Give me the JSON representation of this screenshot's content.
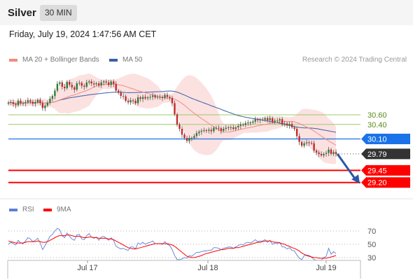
{
  "header": {
    "title": "Silver",
    "timeframe": "30 MIN"
  },
  "datetime": "Friday, July 19, 2024 1:47:56 AM CET",
  "credit": "Research © 2024 Trading Central",
  "colors": {
    "ma20": "#f28b82",
    "ma50": "#3b5fa8",
    "up": "#2e7d32",
    "down": "#c62828",
    "resistance": "#9ccc65",
    "pivot": "#1a73e8",
    "support": "#ff0000",
    "last": "#333333",
    "rsi": "#5b7fd6",
    "rsi_ma": "#ff0000"
  },
  "chart_data": [
    {
      "type": "candlestick",
      "legend": [
        "MA 20 + Bollinger Bands",
        "MA 50"
      ],
      "ylim": [
        28.92,
        31.44
      ],
      "x_ticks": [
        "Jul 17",
        "Jul 18",
        "Jul 19"
      ],
      "levels": [
        {
          "label": "30.60",
          "value": 30.6,
          "kind": "resistance"
        },
        {
          "label": "30.40",
          "value": 30.4,
          "kind": "resistance"
        },
        {
          "label": "30.10",
          "value": 30.1,
          "kind": "pivot"
        },
        {
          "label": "29.79",
          "value": 29.79,
          "kind": "last"
        },
        {
          "label": "29.45",
          "value": 29.45,
          "kind": "support"
        },
        {
          "label": "29.20",
          "value": 29.2,
          "kind": "support"
        }
      ],
      "close": [
        30.85,
        30.86,
        30.82,
        30.8,
        30.89,
        30.84,
        30.84,
        30.86,
        30.9,
        30.87,
        30.83,
        30.86,
        30.91,
        30.84,
        30.74,
        30.79,
        30.85,
        30.93,
        30.99,
        31.1,
        31.24,
        31.27,
        31.18,
        31.15,
        31.28,
        31.22,
        31.17,
        31.12,
        31.25,
        31.26,
        31.2,
        31.18,
        31.27,
        31.29,
        31.25,
        31.23,
        31.25,
        31.21,
        31.27,
        31.29,
        31.27,
        31.22,
        31.29,
        31.24,
        31.1,
        31.06,
        30.99,
        30.98,
        30.89,
        30.86,
        30.9,
        30.89,
        30.84,
        30.96,
        30.93,
        30.97,
        30.94,
        30.96,
        30.97,
        31.0,
        30.96,
        30.97,
        30.97,
        30.95,
        31.01,
        30.97,
        30.95,
        30.84,
        30.61,
        30.4,
        30.31,
        30.19,
        30.12,
        30.06,
        30.12,
        30.12,
        30.16,
        30.22,
        30.25,
        30.27,
        30.28,
        30.27,
        30.29,
        30.26,
        30.33,
        30.33,
        30.32,
        30.27,
        30.31,
        30.33,
        30.34,
        30.34,
        30.31,
        30.34,
        30.37,
        30.4,
        30.39,
        30.43,
        30.44,
        30.44,
        30.46,
        30.51,
        30.49,
        30.5,
        30.5,
        30.53,
        30.49,
        30.53,
        30.45,
        30.48,
        30.48,
        30.51,
        30.4,
        30.42,
        30.38,
        30.41,
        30.34,
        30.31,
        30.16,
        30.04,
        29.96,
        30.01,
        30.03,
        30.02,
        30.01,
        29.86,
        29.82,
        29.79,
        29.76,
        29.79,
        29.81,
        29.88,
        29.79,
        29.83,
        29.79
      ],
      "rsi": [
        50,
        53,
        51,
        49,
        56,
        52,
        51,
        55,
        60,
        58,
        54,
        56,
        59,
        52,
        42,
        48,
        55,
        62,
        65,
        70,
        74,
        72,
        63,
        60,
        67,
        62,
        58,
        56,
        64,
        65,
        58,
        57,
        63,
        66,
        61,
        59,
        61,
        56,
        61,
        62,
        59,
        56,
        60,
        56,
        47,
        45,
        43,
        44,
        42,
        41,
        46,
        46,
        43,
        52,
        50,
        53,
        50,
        52,
        53,
        55,
        51,
        51,
        51,
        50,
        54,
        50,
        48,
        42,
        33,
        27,
        27,
        28,
        30,
        29,
        33,
        32,
        35,
        38,
        38,
        39,
        40,
        40,
        41,
        41,
        45,
        45,
        44,
        42,
        44,
        45,
        46,
        46,
        44,
        46,
        48,
        50,
        49,
        52,
        53,
        52,
        54,
        57,
        54,
        55,
        55,
        57,
        53,
        56,
        50,
        52,
        51,
        53,
        46,
        46,
        43,
        45,
        41,
        40,
        34,
        29,
        27,
        33,
        34,
        33,
        31,
        27,
        26,
        26,
        26,
        30,
        32,
        44,
        35,
        39,
        36
      ],
      "rsi_ma": [
        55,
        54,
        53,
        52,
        52,
        52,
        52,
        53,
        54,
        54,
        54,
        54,
        55,
        54,
        53,
        53,
        54,
        56,
        58,
        60,
        62,
        63,
        63,
        63,
        64,
        64,
        63,
        62,
        62,
        62,
        61,
        60,
        60,
        61,
        61,
        60,
        60,
        59,
        59,
        59,
        59,
        58,
        58,
        57,
        55,
        53,
        51,
        49,
        47,
        45,
        44,
        43,
        43,
        44,
        45,
        46,
        47,
        48,
        49,
        50,
        51,
        51,
        51,
        51,
        51,
        51,
        50,
        49,
        47,
        44,
        41,
        38,
        35,
        32,
        31,
        30,
        30,
        31,
        32,
        33,
        35,
        36,
        37,
        38,
        39,
        40,
        41,
        42,
        42,
        43,
        44,
        44,
        44,
        45,
        45,
        46,
        47,
        48,
        49,
        50,
        51,
        52,
        53,
        53,
        54,
        55,
        55,
        55,
        54,
        53,
        53,
        52,
        51,
        50,
        48,
        47,
        45,
        44,
        42,
        40,
        37,
        35,
        33,
        32,
        31,
        30,
        30,
        29,
        29,
        29,
        29,
        30,
        31,
        32,
        33
      ]
    },
    {
      "type": "line",
      "legend": [
        "RSI",
        "9MA"
      ],
      "y_ticks": [
        "70",
        "50",
        "30"
      ]
    }
  ]
}
